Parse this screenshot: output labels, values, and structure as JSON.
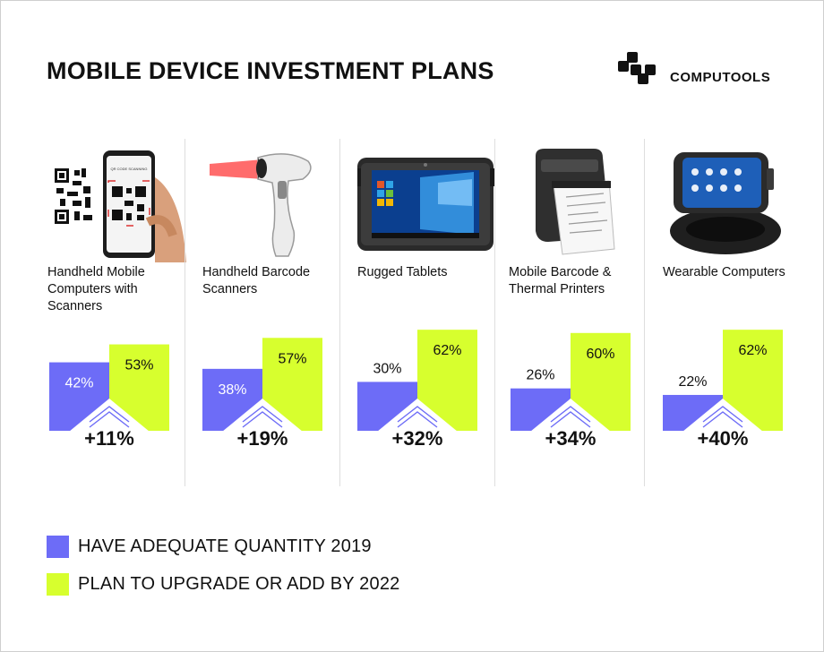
{
  "title": "MOBILE DEVICE INVESTMENT PLANS",
  "brand": {
    "name": "COMPUTOOLS"
  },
  "colors": {
    "series_2019": "#6d6cf7",
    "series_2022": "#d7ff2e",
    "text": "#111111"
  },
  "chart_data": {
    "type": "bar",
    "title": "MOBILE DEVICE INVESTMENT PLANS",
    "categories": [
      "Handheld Mobile Computers with Scanners",
      "Handheld Barcode Scanners",
      "Rugged Tablets",
      "Mobile Barcode & Thermal Printers",
      "Wearable Computers"
    ],
    "series": [
      {
        "name": "HAVE ADEQUATE QUANTITY 2019",
        "values": [
          42,
          38,
          30,
          26,
          22
        ],
        "labels": [
          "42%",
          "38%",
          "30%",
          "26%",
          "22%"
        ]
      },
      {
        "name": "PLAN TO UPGRADE OR ADD BY 2022",
        "values": [
          53,
          57,
          62,
          60,
          62
        ],
        "labels": [
          "53%",
          "57%",
          "62%",
          "60%",
          "62%"
        ]
      }
    ],
    "differences": [
      "+11%",
      "+19%",
      "+32%",
      "+34%",
      "+40%"
    ],
    "unit": "%",
    "legend": "bottom-left"
  }
}
